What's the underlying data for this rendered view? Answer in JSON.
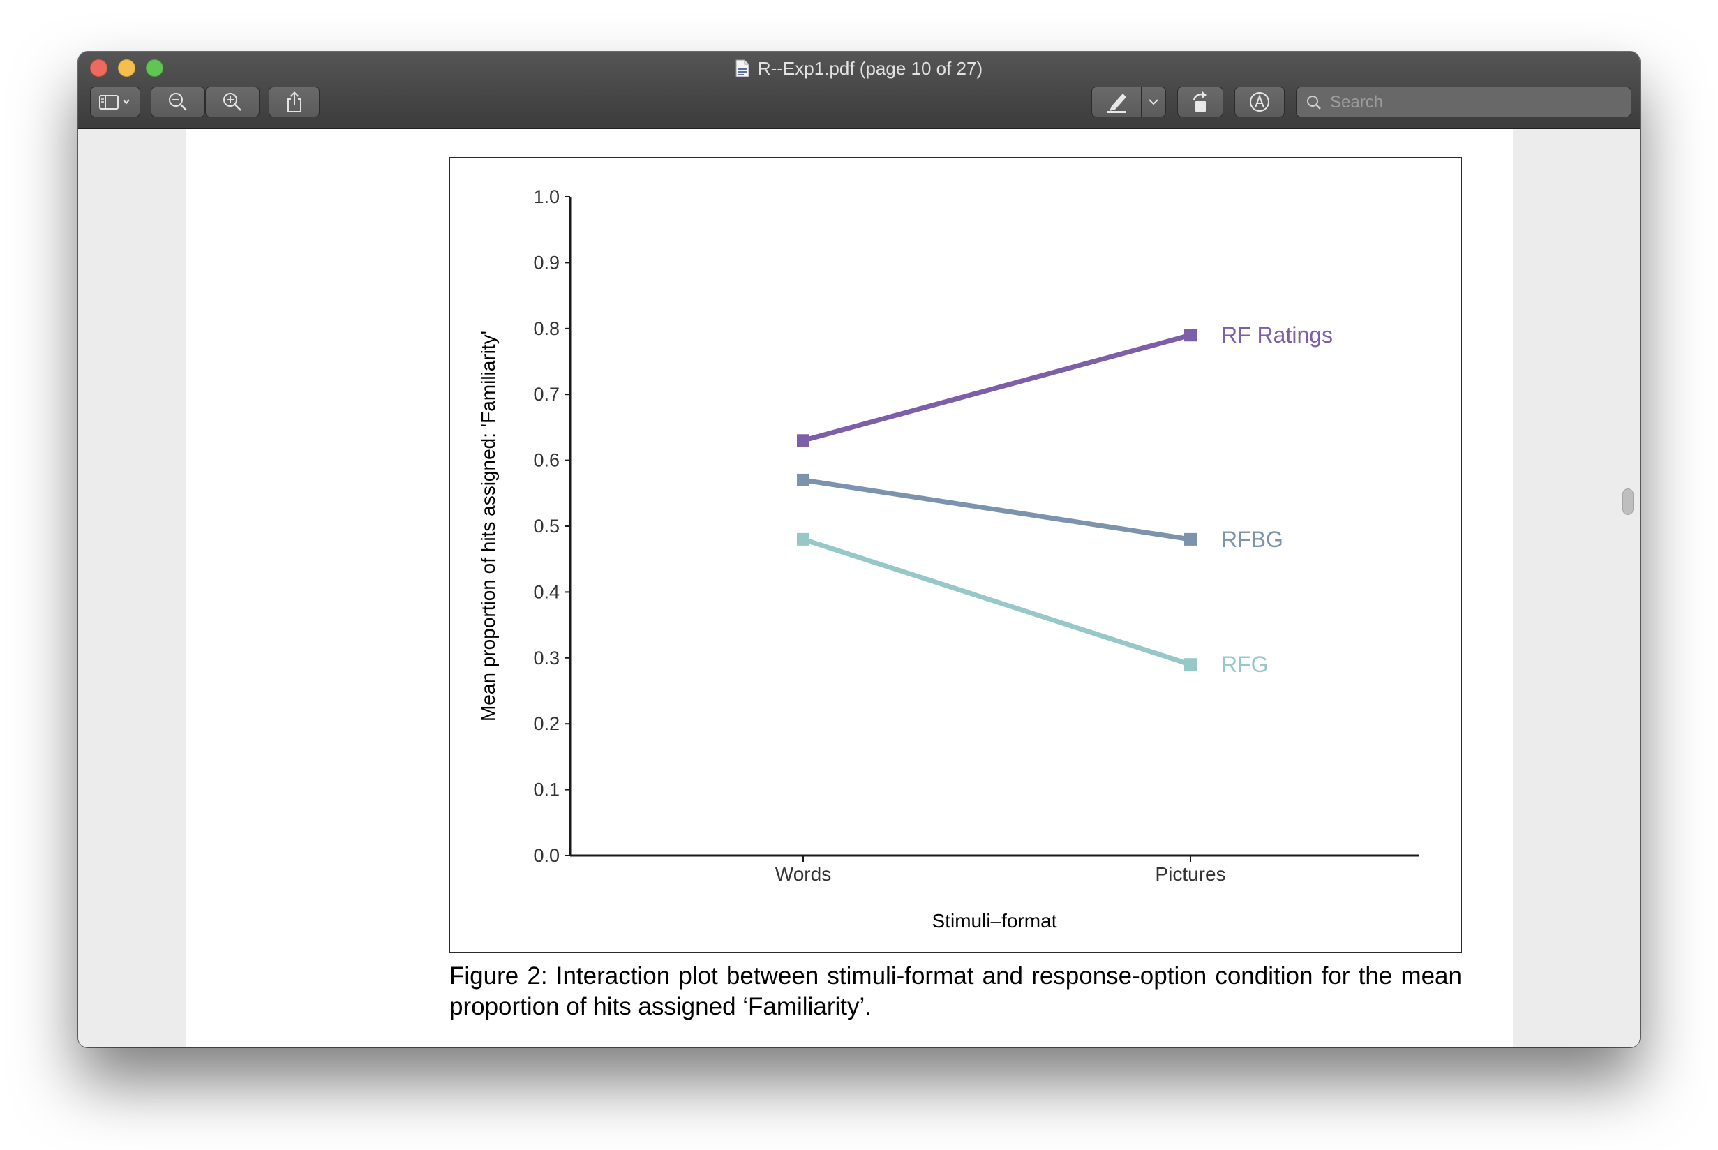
{
  "window": {
    "title": "R--Exp1.pdf (page 10 of 27)",
    "doc_icon": "pdf-document-icon"
  },
  "toolbar": {
    "sidebar_button": "sidebar-toggle-icon",
    "zoom_out_button": "zoom-out-icon",
    "zoom_in_button": "zoom-in-icon",
    "share_button": "share-icon",
    "markup_button": "highlighter-pen-icon",
    "markup_dropdown": "chevron-down-icon",
    "rotate_button": "rotate-left-icon",
    "annotate_button": "markup-toolbar-icon",
    "search": {
      "placeholder": "Search",
      "value": "",
      "icon": "search-icon"
    }
  },
  "colors": {
    "rf_ratings": "#7d5ea8",
    "rfbg": "#7b93ad",
    "rfg": "#97c8c8",
    "titlebar": "#484848",
    "axis": "#1a1a1a"
  },
  "chart_data": {
    "type": "line",
    "categories": [
      "Words",
      "Pictures"
    ],
    "series": [
      {
        "name": "RF Ratings",
        "values": [
          0.63,
          0.79
        ],
        "color": "#7d5ea8"
      },
      {
        "name": "RFBG",
        "values": [
          0.57,
          0.48
        ],
        "color": "#7b93ad"
      },
      {
        "name": "RFG",
        "values": [
          0.48,
          0.29
        ],
        "color": "#97c8c8"
      }
    ],
    "xlabel": "Stimuli–format",
    "ylabel": "Mean proportion of hits assigned:  'Familiarity'",
    "ylim": [
      0.0,
      1.0
    ],
    "yticks": [
      "0.0",
      "0.1",
      "0.2",
      "0.3",
      "0.4",
      "0.5",
      "0.6",
      "0.7",
      "0.8",
      "0.9",
      "1.0"
    ],
    "grid": false,
    "legend": "direct labels at right end of each line"
  },
  "caption": "Figure 2:  Interaction plot between stimuli-format and response-option condition for the mean proportion of hits assigned ‘Familiarity’."
}
